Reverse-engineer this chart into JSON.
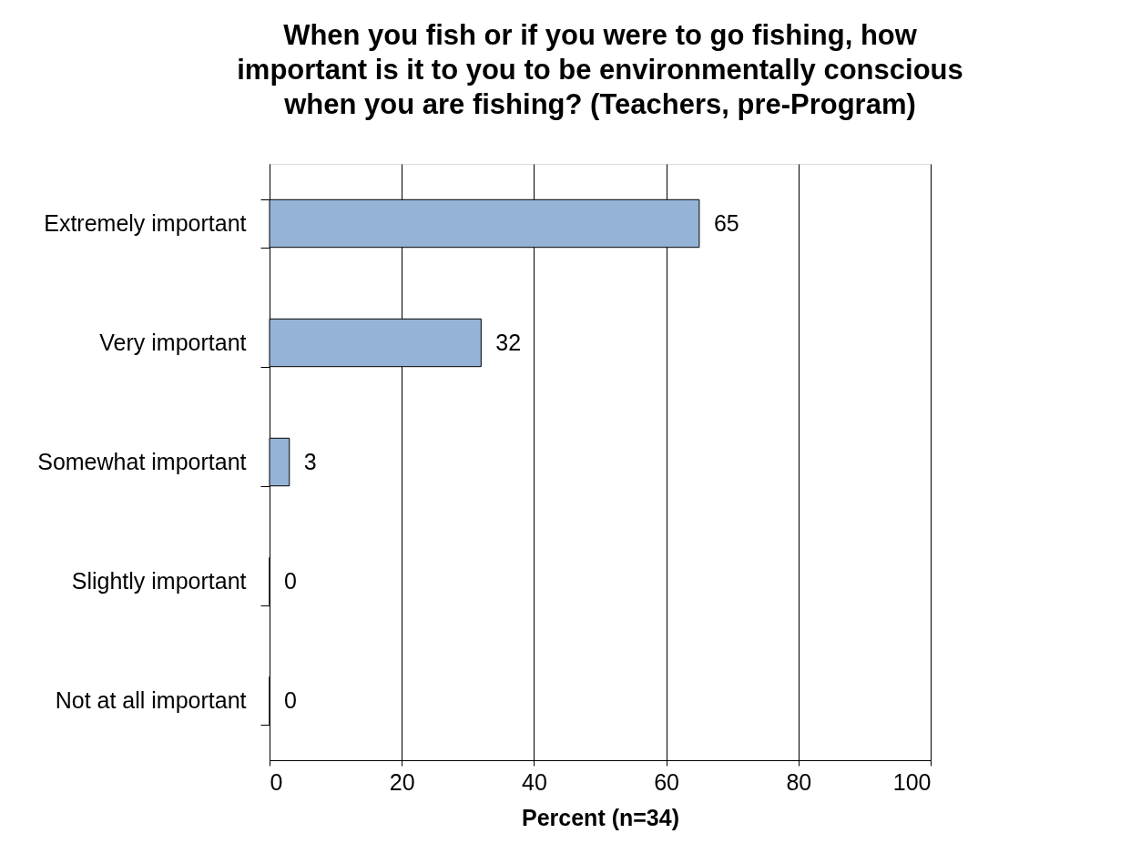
{
  "chart_data": {
    "type": "bar",
    "orientation": "horizontal",
    "title": "When you fish or if you were to go fishing, how\nimportant is it to you to be environmentally conscious\nwhen you are fishing? (Teachers, pre-Program)",
    "xlabel": "Percent (n=34)",
    "categories": [
      "Extremely important",
      "Very important",
      "Somewhat important",
      "Slightly important",
      "Not at all important"
    ],
    "values": [
      65,
      32,
      3,
      0,
      0
    ],
    "color": "#95b3d7",
    "xlim": [
      0,
      100
    ],
    "xticks": [
      0,
      20,
      40,
      60,
      80,
      100
    ],
    "grid": "x",
    "data_labels": true
  }
}
